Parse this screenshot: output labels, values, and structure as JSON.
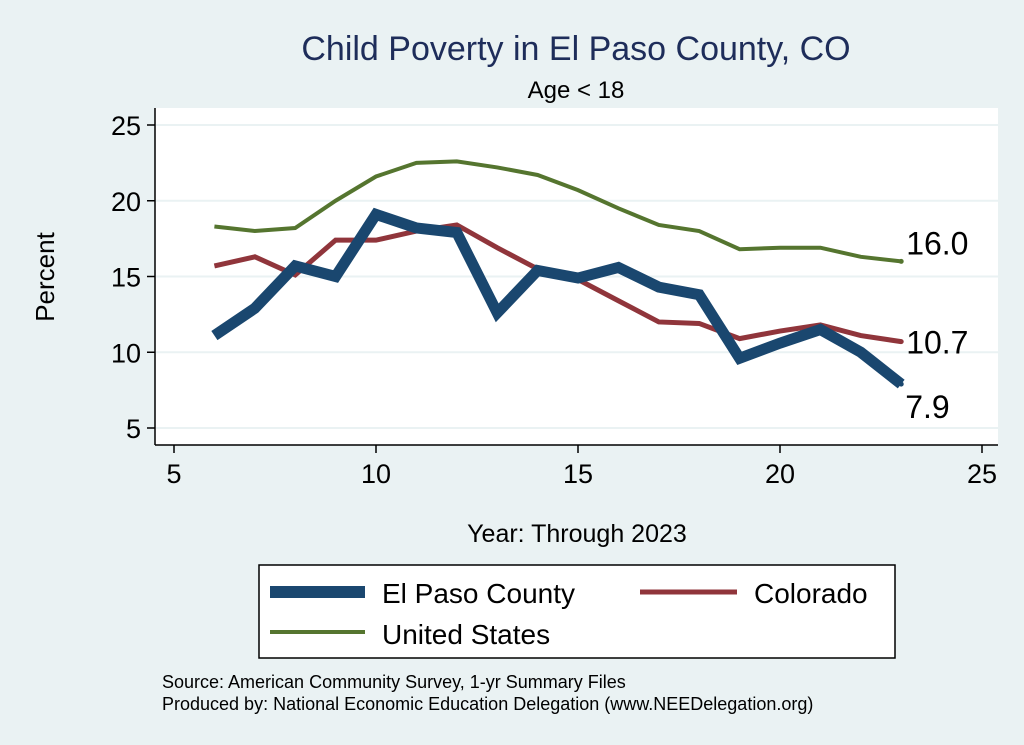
{
  "chart_data": {
    "type": "line",
    "title": "Child Poverty in El Paso County, CO",
    "subtitle": "Age < 18",
    "xlabel": "Year: Through 2023",
    "ylabel": "Percent",
    "xlim": [
      5,
      25
    ],
    "ylim": [
      5,
      25
    ],
    "xticks": [
      "5",
      "10",
      "15",
      "20",
      "25"
    ],
    "yticks": [
      "5",
      "10",
      "15",
      "20",
      "25"
    ],
    "grid": true,
    "legend_position": "bottom",
    "series": [
      {
        "name": "El Paso County",
        "color": "#1a476f",
        "x": [
          6,
          7,
          8,
          9,
          10,
          11,
          12,
          13,
          14,
          15,
          16,
          17,
          18,
          19,
          20,
          21,
          22,
          23
        ],
        "values": [
          11.1,
          12.9,
          15.7,
          15.0,
          19.1,
          18.2,
          17.9,
          12.6,
          15.4,
          14.9,
          15.6,
          14.3,
          13.8,
          9.6,
          10.6,
          11.5,
          10.0,
          7.9
        ],
        "end_label": "7.9"
      },
      {
        "name": "Colorado",
        "color": "#90353b",
        "x": [
          6,
          7,
          8,
          9,
          10,
          11,
          12,
          13,
          14,
          15,
          16,
          17,
          18,
          19,
          20,
          21,
          22,
          23
        ],
        "values": [
          15.7,
          16.3,
          15.1,
          17.4,
          17.4,
          18.0,
          18.4,
          16.9,
          15.5,
          14.8,
          13.4,
          12.0,
          11.9,
          10.9,
          11.4,
          11.8,
          11.1,
          10.7
        ],
        "end_label": "10.7"
      },
      {
        "name": "United States",
        "color": "#55752f",
        "x": [
          6,
          7,
          8,
          9,
          10,
          11,
          12,
          13,
          14,
          15,
          16,
          17,
          18,
          19,
          20,
          21,
          22,
          23
        ],
        "values": [
          18.3,
          18.0,
          18.2,
          20.0,
          21.6,
          22.5,
          22.6,
          22.2,
          21.7,
          20.7,
          19.5,
          18.4,
          18.0,
          16.8,
          16.9,
          16.9,
          16.3,
          16.0
        ],
        "end_label": "16.0"
      }
    ]
  },
  "footer": {
    "source": "Source: American Community Survey, 1-yr Summary Files",
    "producer": "Produced by: National Economic Education Delegation (www.NEEDelegation.org)"
  }
}
